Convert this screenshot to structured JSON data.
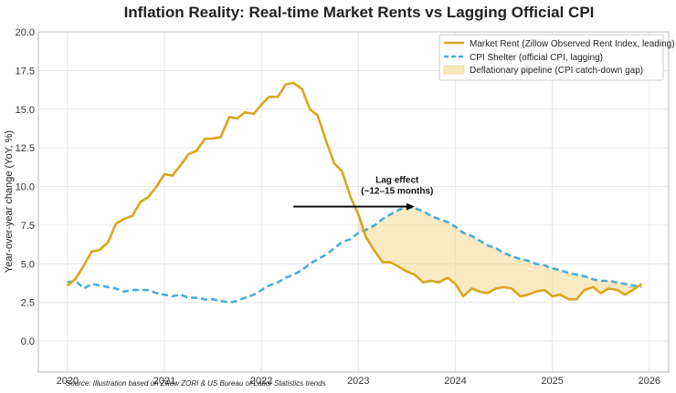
{
  "chart_data": {
    "type": "line",
    "title": "Inflation Reality: Real-time Market Rents vs Lagging Official CPI",
    "xlabel": "",
    "ylabel": "Year-over-year change (YoY, %)",
    "xlim": [
      2019.7,
      2026.2
    ],
    "ylim": [
      -2,
      20
    ],
    "grid": true,
    "x_ticks": [
      2020,
      2021,
      2022,
      2023,
      2024,
      2025,
      2026
    ],
    "x_tick_labels": [
      "2020",
      "2021",
      "2022",
      "2023",
      "2024",
      "2025",
      "2026"
    ],
    "y_ticks": [
      0,
      2.5,
      5,
      7.5,
      10,
      12.5,
      15,
      17.5,
      20
    ],
    "y_tick_labels": [
      "0.0",
      "2.5",
      "5.0",
      "7.5",
      "10.0",
      "12.5",
      "15.0",
      "17.5",
      "20.0"
    ],
    "x": [
      2020.0,
      2020.08,
      2020.17,
      2020.25,
      2020.33,
      2020.42,
      2020.5,
      2020.58,
      2020.67,
      2020.75,
      2020.83,
      2020.92,
      2021.0,
      2021.08,
      2021.17,
      2021.25,
      2021.33,
      2021.42,
      2021.5,
      2021.58,
      2021.67,
      2021.75,
      2021.83,
      2021.92,
      2022.0,
      2022.08,
      2022.17,
      2022.25,
      2022.33,
      2022.42,
      2022.5,
      2022.58,
      2022.67,
      2022.75,
      2022.83,
      2022.92,
      2023.0,
      2023.08,
      2023.17,
      2023.25,
      2023.33,
      2023.42,
      2023.5,
      2023.58,
      2023.67,
      2023.75,
      2023.83,
      2023.92,
      2024.0,
      2024.08,
      2024.17,
      2024.25,
      2024.33,
      2024.42,
      2024.5,
      2024.58,
      2024.67,
      2024.75,
      2024.83,
      2024.92,
      2025.0,
      2025.08,
      2025.17,
      2025.25,
      2025.33,
      2025.42,
      2025.5,
      2025.58,
      2025.67,
      2025.75,
      2025.83,
      2025.92
    ],
    "series": [
      {
        "name": "Market Rent (Zillow Observed Rent Index, leading)",
        "color": "#DAA520",
        "style": "solid",
        "values": [
          3.6,
          4.0,
          4.9,
          5.8,
          5.9,
          6.4,
          7.6,
          7.9,
          8.1,
          9.0,
          9.3,
          10.0,
          10.8,
          10.7,
          11.4,
          12.1,
          12.3,
          13.1,
          13.1,
          13.2,
          14.5,
          14.4,
          14.8,
          14.7,
          15.3,
          15.8,
          15.8,
          16.6,
          16.7,
          16.3,
          15.0,
          14.6,
          12.9,
          11.5,
          11.0,
          9.3,
          8.2,
          6.7,
          5.8,
          5.1,
          5.1,
          4.8,
          4.5,
          4.3,
          3.8,
          3.9,
          3.8,
          4.1,
          3.7,
          2.9,
          3.4,
          3.2,
          3.1,
          3.4,
          3.5,
          3.4,
          2.9,
          3.0,
          3.2,
          3.3,
          2.9,
          3.0,
          2.7,
          2.7,
          3.3,
          3.5,
          3.1,
          3.4,
          3.3,
          3.0,
          3.3,
          3.7
        ]
      },
      {
        "name": "CPI Shelter (official CPI, lagging)",
        "color": "#4BACD8",
        "style": "dashed",
        "values": [
          3.8,
          3.9,
          3.4,
          3.7,
          3.6,
          3.5,
          3.4,
          3.2,
          3.3,
          3.3,
          3.3,
          3.1,
          3.0,
          2.9,
          3.0,
          2.8,
          2.8,
          2.7,
          2.7,
          2.6,
          2.5,
          2.6,
          2.8,
          3.0,
          3.3,
          3.6,
          3.8,
          4.1,
          4.3,
          4.6,
          5.0,
          5.3,
          5.6,
          6.0,
          6.4,
          6.6,
          7.0,
          7.2,
          7.5,
          7.9,
          8.2,
          8.5,
          8.7,
          8.6,
          8.4,
          8.1,
          7.9,
          7.7,
          7.4,
          7.0,
          6.8,
          6.5,
          6.2,
          6.0,
          5.7,
          5.5,
          5.3,
          5.2,
          5.0,
          4.9,
          4.7,
          4.6,
          4.4,
          4.3,
          4.2,
          4.0,
          3.9,
          3.9,
          3.8,
          3.7,
          3.6,
          3.5
        ]
      }
    ],
    "fill_between": {
      "label": "Deflationary pipeline (CPI catch-down gap)",
      "color": "#F5D891",
      "x_start": 2023.0
    },
    "annotation": {
      "text_line1": "Lag effect",
      "text_line2": "(~12–15 months)",
      "arrow_from": [
        2022.33,
        8.7
      ],
      "arrow_to": [
        2023.58,
        8.7
      ],
      "text_at": [
        2023.4,
        10.0
      ]
    },
    "legend_position": "top-right",
    "source": "Source: Illustration based on Zillow ZORI & US Bureau of Labor Statistics trends"
  }
}
